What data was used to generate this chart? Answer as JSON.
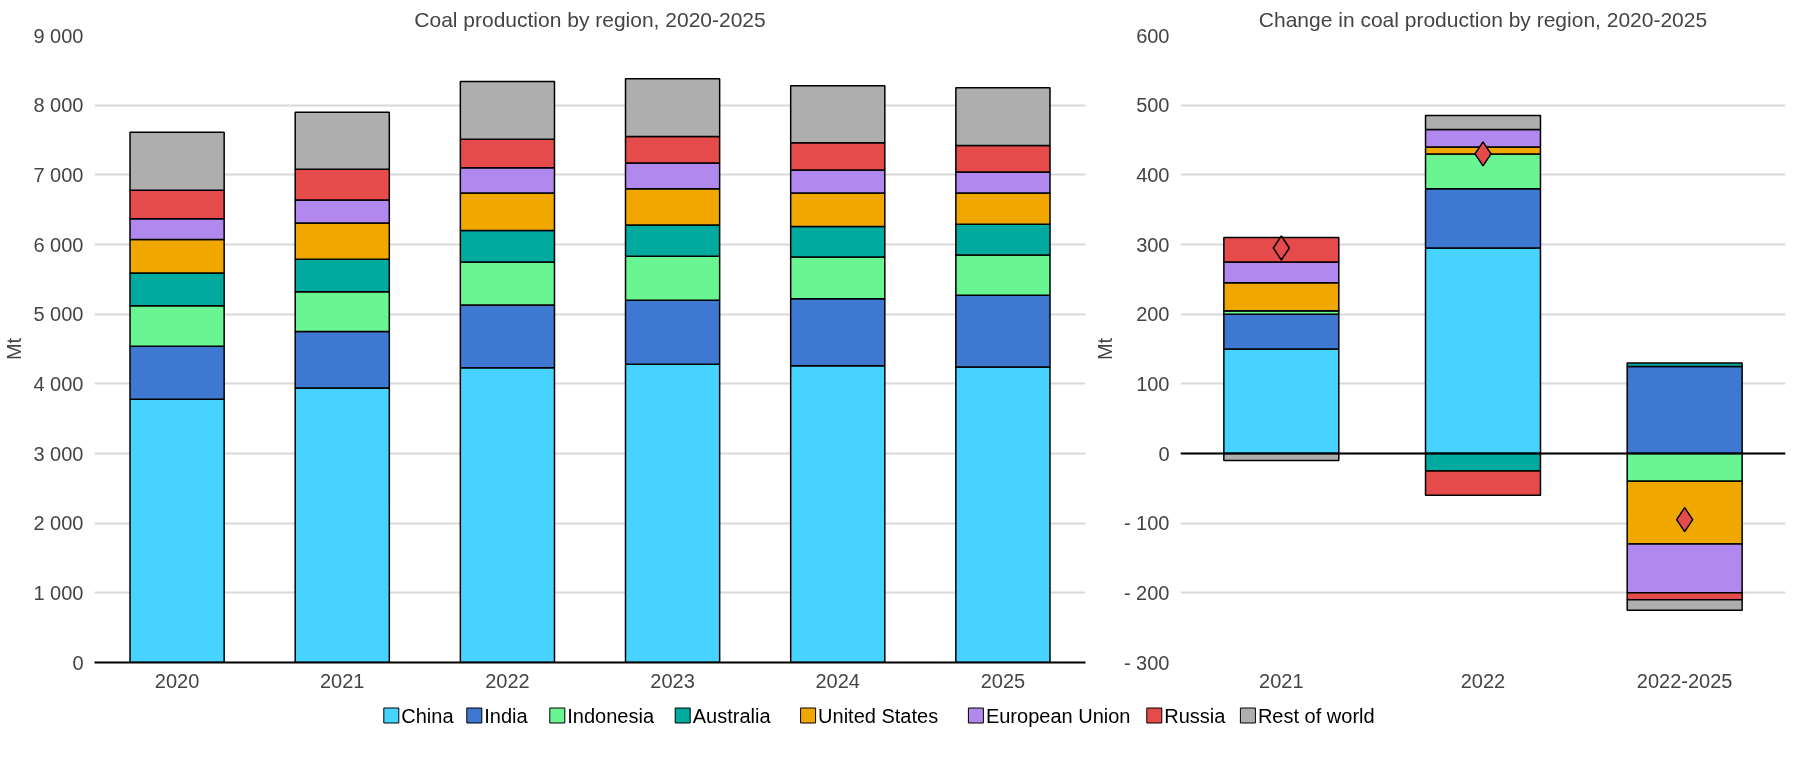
{
  "chart_data": [
    {
      "type": "bar",
      "title": "Coal production by region, 2020-2025",
      "ylabel": "Mt",
      "stacked": true,
      "grid": "y",
      "legend": "bottom",
      "categories": [
        "2020",
        "2021",
        "2022",
        "2023",
        "2024",
        "2025"
      ],
      "ylim": [
        0,
        9000
      ],
      "yticks": [
        0,
        {
          "value": 1000,
          "label": "1 000"
        },
        {
          "value": 2000,
          "label": "2 000"
        },
        {
          "value": 3000,
          "label": "3 000"
        },
        {
          "value": 4000,
          "label": "4 000"
        },
        {
          "value": 5000,
          "label": "5 000"
        },
        {
          "value": 6000,
          "label": "6 000"
        },
        {
          "value": 7000,
          "label": "7 000"
        },
        {
          "value": 8000,
          "label": "8 000"
        },
        {
          "value": 9000,
          "label": "9 000"
        }
      ],
      "series": [
        {
          "name": "China",
          "color": "#47d3ff",
          "values": [
            3780,
            3940,
            4230,
            4280,
            4260,
            4240
          ]
        },
        {
          "name": "India",
          "color": "#3f78d0",
          "values": [
            760,
            810,
            900,
            920,
            960,
            1030
          ]
        },
        {
          "name": "Indonesia",
          "color": "#69f591",
          "values": [
            580,
            570,
            620,
            630,
            600,
            580
          ]
        },
        {
          "name": "Australia",
          "color": "#00aa9e",
          "values": [
            470,
            470,
            450,
            450,
            440,
            440
          ]
        },
        {
          "name": "United States",
          "color": "#f0a800",
          "values": [
            480,
            520,
            540,
            520,
            480,
            450
          ]
        },
        {
          "name": "European Union",
          "color": "#b088ee",
          "values": [
            300,
            330,
            360,
            370,
            330,
            300
          ]
        },
        {
          "name": "Russia",
          "color": "#e44b4a",
          "values": [
            410,
            440,
            410,
            380,
            390,
            380
          ]
        },
        {
          "name": "Rest of world",
          "color": "#aeaeae",
          "values": [
            830,
            820,
            830,
            830,
            820,
            830
          ]
        }
      ]
    },
    {
      "type": "bar",
      "title": "Change in coal production by region, 2020-2025",
      "ylabel": "Mt",
      "stacked": true,
      "grid": "y",
      "marker": "diamond",
      "categories": [
        "2021",
        "2022",
        "2022-2025"
      ],
      "ylim": [
        -300,
        600
      ],
      "yticks": [
        {
          "value": -300,
          "label": "- 300"
        },
        {
          "value": -200,
          "label": "- 200"
        },
        {
          "value": -100,
          "label": "- 100"
        },
        0,
        100,
        200,
        300,
        400,
        500,
        600
      ],
      "series": [
        {
          "color": "#47d3ff",
          "values": [
            150,
            295,
            0
          ]
        },
        {
          "color": "#3f78d0",
          "values": [
            50,
            85,
            125
          ]
        },
        {
          "color": "#69f591",
          "values": [
            5,
            50,
            -40
          ]
        },
        {
          "color": "#00aa9e",
          "values": [
            0,
            -25,
            5
          ]
        },
        {
          "color": "#f0a800",
          "values": [
            40,
            10,
            -90
          ]
        },
        {
          "color": "#b088ee",
          "values": [
            30,
            25,
            -70
          ]
        },
        {
          "color": "#e44b4a",
          "values": [
            35,
            -35,
            -10
          ]
        },
        {
          "color": "#aeaeae",
          "values": [
            -10,
            20,
            -15
          ]
        },
        {
          "type": "scatter",
          "color": "#e44b4a",
          "values": [
            295,
            430,
            -95
          ]
        }
      ]
    }
  ]
}
